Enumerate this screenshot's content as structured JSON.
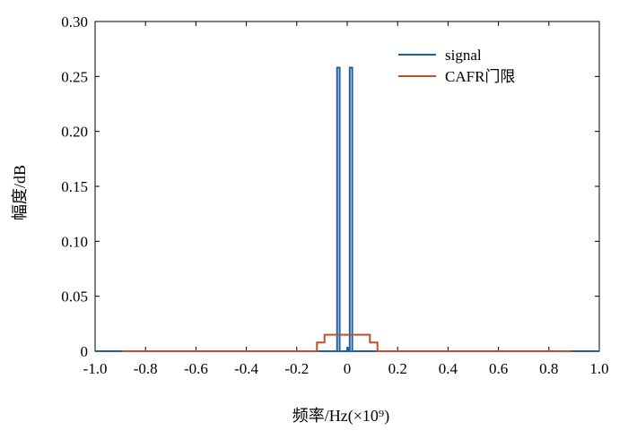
{
  "chart_data": {
    "type": "line",
    "title": "",
    "xlabel": "频率/Hz(×10⁹)",
    "ylabel": "幅度/dB",
    "xlim": [
      -1.0,
      1.0
    ],
    "ylim": [
      0,
      0.3
    ],
    "grid": false,
    "legend_position": "top-right",
    "x_ticks": [
      "-1.0",
      "-0.8",
      "-0.6",
      "-0.4",
      "-0.2",
      "0",
      "0.2",
      "0.4",
      "0.6",
      "0.8",
      "1.0"
    ],
    "y_ticks": [
      "0",
      "0.05",
      "0.10",
      "0.15",
      "0.20",
      "0.25",
      "0.30"
    ],
    "series": [
      {
        "name": "signal",
        "color": "#1f5f9e",
        "x": [
          -1.0,
          -0.04,
          -0.04,
          -0.03,
          -0.03,
          0.0,
          0.0,
          0.003,
          0.003,
          0.01,
          0.01,
          0.02,
          0.02,
          1.0
        ],
        "y": [
          0,
          0,
          0.258,
          0.258,
          0,
          0,
          0.003,
          0.003,
          0,
          0,
          0.258,
          0.258,
          0,
          0
        ]
      },
      {
        "name": "CAFR门限",
        "color": "#c0502d",
        "x": [
          -0.89,
          -0.12,
          -0.12,
          -0.09,
          -0.09,
          0.09,
          0.09,
          0.12,
          0.12,
          0.89
        ],
        "y": [
          0,
          0,
          0.008,
          0.008,
          0.015,
          0.015,
          0.008,
          0.008,
          0,
          0
        ]
      }
    ]
  }
}
